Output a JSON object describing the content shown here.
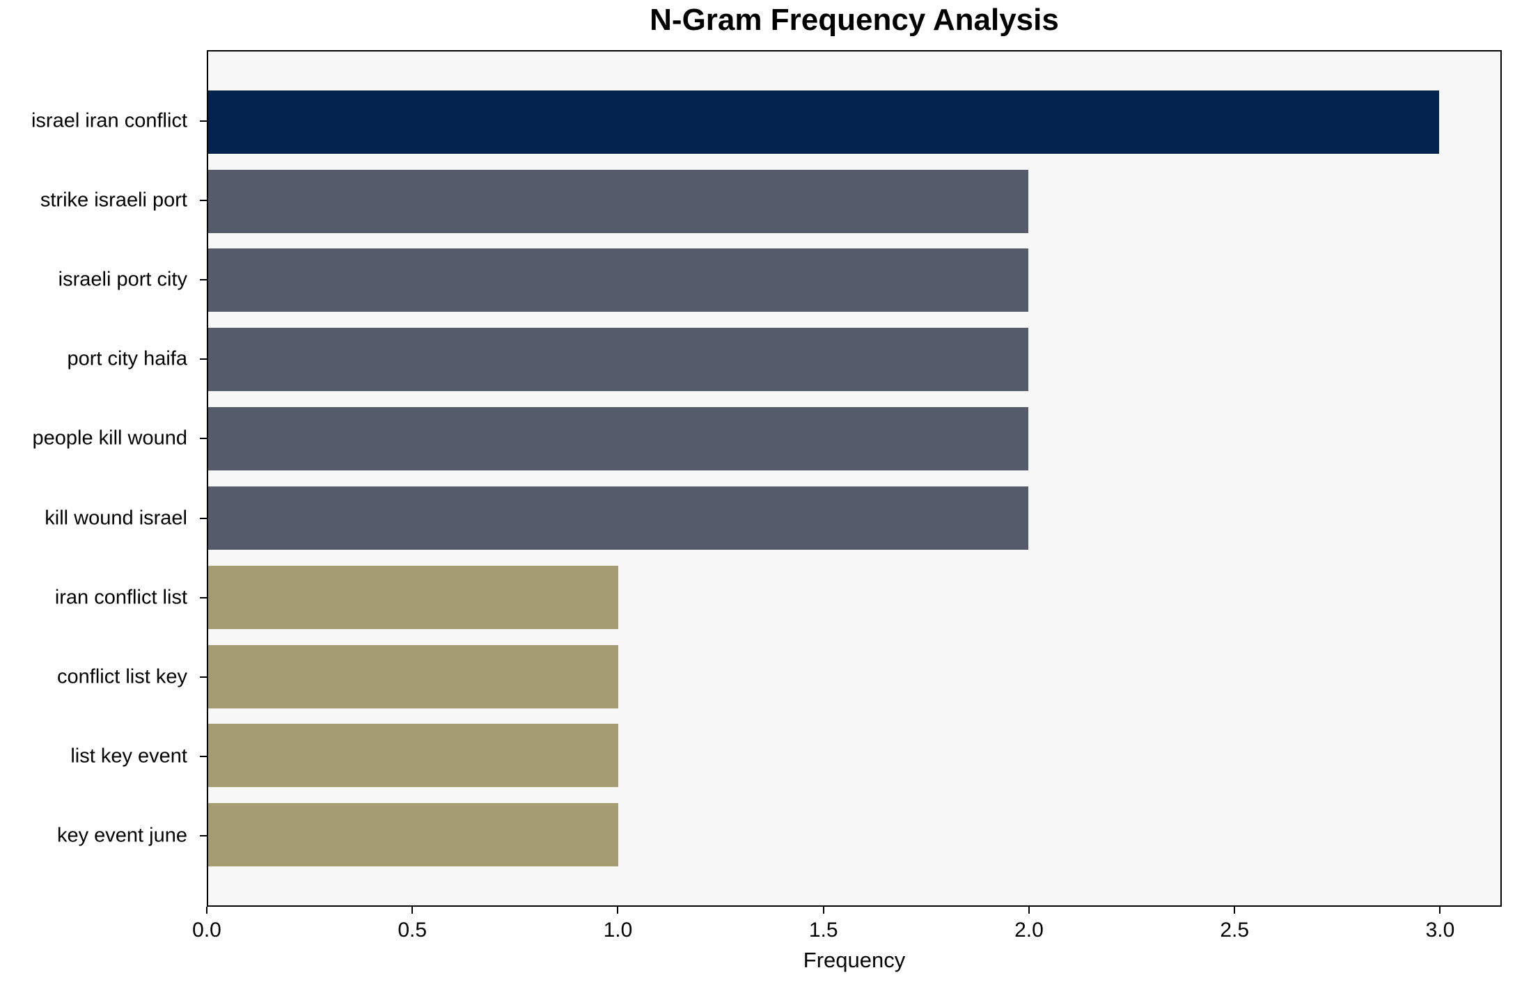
{
  "chart_data": {
    "type": "bar",
    "orientation": "horizontal",
    "title": "N-Gram Frequency Analysis",
    "xlabel": "Frequency",
    "ylabel": "",
    "categories": [
      "israel iran conflict",
      "strike israeli port",
      "israeli port city",
      "port city haifa",
      "people kill wound",
      "kill wound israel",
      "iran conflict list",
      "conflict list key",
      "list key event",
      "key event june"
    ],
    "values": [
      3,
      2,
      2,
      2,
      2,
      2,
      1,
      1,
      1,
      1
    ],
    "bar_colors": [
      "#02234D",
      "#565B6B",
      "#565B6B",
      "#565B6B",
      "#565B6B",
      "#565B6B",
      "#A69C72",
      "#A69C72",
      "#A69C72",
      "#A69C72"
    ],
    "x_ticks": [
      0,
      0.5,
      1,
      1.5,
      2,
      2.5,
      3
    ],
    "x_tick_labels": [
      "0.0",
      "0.5",
      "1.0",
      "1.5",
      "2.0",
      "2.5",
      "3.0"
    ],
    "xlim": [
      0,
      3.15
    ],
    "grid": false,
    "legend": false,
    "plot_background": "#F7F7F7",
    "bar_height_fraction": 0.8,
    "y_margin_units": 0.89
  }
}
